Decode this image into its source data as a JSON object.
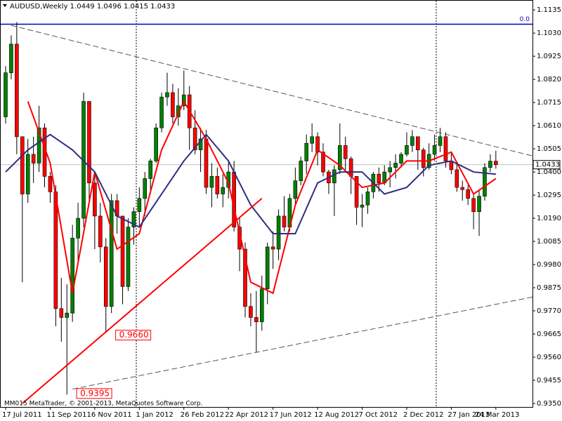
{
  "chart_data": {
    "type": "candlestick",
    "title": "AUDUSD,Weekly  1.0449 1.0496 1.0415 1.0433",
    "footer": "MM015 MetaTrader, © 2001-2013, MetaQuotes Software Corp.",
    "colors": {
      "up": "#008000",
      "down": "#ff0000",
      "wick": "#000000"
    },
    "categories": [
      "17 Jul 2011",
      null,
      null,
      null,
      null,
      null,
      null,
      null,
      "11 Sep 2011",
      null,
      null,
      null,
      null,
      null,
      null,
      null,
      "6 Nov 2011",
      null,
      null,
      null,
      null,
      null,
      null,
      null,
      "1 Jan 2012",
      null,
      null,
      null,
      null,
      null,
      null,
      null,
      "26 Feb 2012",
      null,
      null,
      null,
      null,
      null,
      null,
      null,
      "22 Apr 2012",
      null,
      null,
      null,
      null,
      null,
      null,
      null,
      "17 Jun 2012",
      null,
      null,
      null,
      null,
      null,
      null,
      null,
      "12 Aug 2012",
      null,
      null,
      null,
      null,
      null,
      null,
      null,
      "7 Oct 2012",
      null,
      null,
      null,
      null,
      null,
      null,
      null,
      "2 Dec 2012",
      null,
      null,
      null,
      null,
      null,
      null,
      null,
      "27 Jan 2013",
      null,
      null,
      null,
      null,
      null,
      null,
      null,
      "24 Mar 2013"
    ],
    "open": [
      1.065,
      1.085,
      1.098,
      1.056,
      1.03,
      1.048,
      1.044,
      1.06,
      1.038,
      1.031,
      0.978,
      0.974,
      0.976,
      1.01,
      1.019,
      1.072,
      1.035,
      1.02,
      1.006,
      0.979,
      1.027,
      1.02,
      0.988,
      1.015,
      1.022,
      1.028,
      1.037,
      1.045,
      1.06,
      1.074,
      1.076,
      1.065,
      1.07,
      1.075,
      1.06,
      1.05,
      1.055,
      1.033,
      1.038,
      1.03,
      1.033,
      1.04,
      1.015,
      1.005,
      0.979,
      0.974,
      0.972,
      0.987,
      1.006,
      1.005,
      1.02,
      1.015,
      1.028,
      1.036,
      1.045,
      1.053,
      1.056,
      1.049,
      1.04,
      1.035,
      1.041,
      1.052,
      1.046,
      1.038,
      1.024,
      1.025,
      1.031,
      1.039,
      1.035,
      1.04,
      1.042,
      1.044,
      1.048,
      1.052,
      1.056,
      1.05,
      1.042,
      1.048,
      1.052,
      1.056,
      1.045,
      1.041,
      1.033,
      1.032,
      1.028,
      1.022,
      1.029,
      1.042,
      1.0449
    ],
    "high": [
      1.088,
      1.102,
      1.108,
      1.056,
      1.055,
      1.056,
      1.07,
      1.062,
      1.04,
      1.034,
      0.992,
      0.989,
      1.016,
      1.026,
      1.076,
      1.072,
      1.04,
      1.026,
      1.01,
      1.03,
      1.03,
      1.02,
      1.019,
      1.024,
      1.033,
      1.04,
      1.046,
      1.062,
      1.076,
      1.085,
      1.08,
      1.078,
      1.086,
      1.079,
      1.068,
      1.06,
      1.059,
      1.044,
      1.042,
      1.039,
      1.045,
      1.045,
      1.019,
      1.008,
      0.985,
      0.986,
      0.993,
      1.008,
      1.013,
      1.023,
      1.029,
      1.03,
      1.042,
      1.047,
      1.057,
      1.062,
      1.058,
      1.053,
      1.041,
      1.043,
      1.062,
      1.056,
      1.047,
      1.038,
      1.03,
      1.033,
      1.04,
      1.042,
      1.043,
      1.045,
      1.048,
      1.049,
      1.058,
      1.059,
      1.056,
      1.051,
      1.053,
      1.057,
      1.06,
      1.058,
      1.049,
      1.044,
      1.036,
      1.034,
      1.03,
      1.032,
      1.044,
      1.048,
      1.0496
    ],
    "low": [
      1.062,
      1.082,
      1.048,
      0.99,
      1.026,
      1.035,
      1.04,
      1.033,
      1.026,
      0.97,
      0.963,
      0.939,
      0.972,
      0.999,
      1.015,
      1.025,
      1.005,
      0.999,
      0.967,
      0.976,
      1.012,
      0.98,
      0.986,
      1.007,
      1.015,
      1.02,
      1.03,
      1.044,
      1.058,
      1.07,
      1.062,
      1.061,
      1.068,
      1.05,
      1.048,
      1.04,
      1.03,
      1.024,
      1.028,
      1.024,
      1.028,
      1.013,
      0.995,
      0.974,
      0.97,
      0.958,
      0.968,
      0.98,
      0.996,
      1.0,
      1.013,
      1.013,
      1.025,
      1.034,
      1.039,
      1.049,
      1.043,
      1.038,
      1.03,
      1.02,
      1.039,
      1.041,
      1.03,
      1.016,
      1.015,
      1.021,
      1.028,
      1.031,
      1.034,
      1.033,
      1.037,
      1.042,
      1.047,
      1.049,
      1.041,
      1.038,
      1.041,
      1.045,
      1.049,
      1.042,
      1.039,
      1.031,
      1.027,
      1.025,
      1.014,
      1.011,
      1.027,
      1.04,
      1.0415
    ],
    "close": [
      1.085,
      1.098,
      1.056,
      1.03,
      1.048,
      1.044,
      1.06,
      1.038,
      1.031,
      0.978,
      0.974,
      0.976,
      1.01,
      1.019,
      1.072,
      1.035,
      1.02,
      1.006,
      0.979,
      1.027,
      1.02,
      0.988,
      1.015,
      1.022,
      1.028,
      1.037,
      1.045,
      1.06,
      1.074,
      1.076,
      1.065,
      1.07,
      1.075,
      1.06,
      1.05,
      1.055,
      1.033,
      1.038,
      1.03,
      1.033,
      1.04,
      1.015,
      1.005,
      0.979,
      0.974,
      0.972,
      0.987,
      1.006,
      1.005,
      1.02,
      1.015,
      1.028,
      1.036,
      1.045,
      1.053,
      1.056,
      1.049,
      1.04,
      1.035,
      1.041,
      1.052,
      1.046,
      1.038,
      1.024,
      1.025,
      1.031,
      1.039,
      1.035,
      1.04,
      1.042,
      1.044,
      1.048,
      1.052,
      1.056,
      1.05,
      1.042,
      1.048,
      1.052,
      1.056,
      1.045,
      1.041,
      1.033,
      1.032,
      1.028,
      1.022,
      1.029,
      1.042,
      1.0449,
      1.0433
    ],
    "lines": [
      {
        "color": "#ff0000",
        "width": 2,
        "x": [
          4,
          8,
          12,
          16,
          20,
          24,
          28,
          32,
          36,
          40,
          44,
          48,
          52,
          56,
          60,
          64,
          68,
          72,
          76,
          80,
          84,
          88
        ],
        "values": [
          1.072,
          1.044,
          0.985,
          1.04,
          1.005,
          1.012,
          1.05,
          1.072,
          1.055,
          1.035,
          0.99,
          0.985,
          1.025,
          1.05,
          1.043,
          1.033,
          1.035,
          1.045,
          1.045,
          1.049,
          1.03,
          1.037
        ]
      },
      {
        "color": "#2e2e80",
        "width": 2,
        "x": [
          0,
          4,
          8,
          12,
          16,
          20,
          24,
          28,
          32,
          36,
          40,
          44,
          48,
          52,
          56,
          60,
          64,
          68,
          72,
          76,
          80,
          84,
          88
        ],
        "values": [
          1.04,
          1.05,
          1.057,
          1.05,
          1.04,
          1.02,
          1.015,
          1.03,
          1.045,
          1.057,
          1.045,
          1.025,
          1.012,
          1.012,
          1.035,
          1.04,
          1.04,
          1.03,
          1.033,
          1.043,
          1.045,
          1.04,
          1.039
        ]
      },
      {
        "color": "#ff0000",
        "width": 2,
        "x": [
          3,
          46
        ],
        "values": [
          0.935,
          1.028
        ]
      },
      {
        "color": "#555555",
        "width": 1,
        "dash": true,
        "x": [
          1,
          95
        ],
        "values": [
          1.1065,
          1.047
        ]
      },
      {
        "color": "#555555",
        "width": 1,
        "dash": true,
        "x": [
          12,
          95
        ],
        "values": [
          0.9415,
          0.9835
        ]
      }
    ],
    "level": {
      "value": 1.107,
      "label": "0.0",
      "color": "#0000cc"
    },
    "price_labels": [
      {
        "value": 0.966,
        "label": "0.9660",
        "at": 20
      },
      {
        "value": 0.9395,
        "label": "0.9395",
        "at": 13
      }
    ],
    "ylim": [
      0.9334,
      1.118
    ],
    "yticks": [
      1.1135,
      {
        "value": 1.103,
        "label": "1.1030"
      },
      1.0925,
      {
        "value": 1.082,
        "label": "1.0820"
      },
      1.0715,
      {
        "value": 1.061,
        "label": "1.0610"
      },
      1.0505,
      {
        "value": 1.04,
        "label": "1.0400"
      },
      1.0295,
      {
        "value": 1.019,
        "label": "1.0190"
      },
      1.0085,
      {
        "value": 0.998,
        "label": "0.9980"
      },
      0.9875,
      {
        "value": 0.977,
        "label": "0.9770"
      },
      0.9665,
      {
        "value": 0.956,
        "label": "0.9560"
      },
      0.9455,
      {
        "value": 0.935,
        "label": "0.9350"
      }
    ]
  }
}
